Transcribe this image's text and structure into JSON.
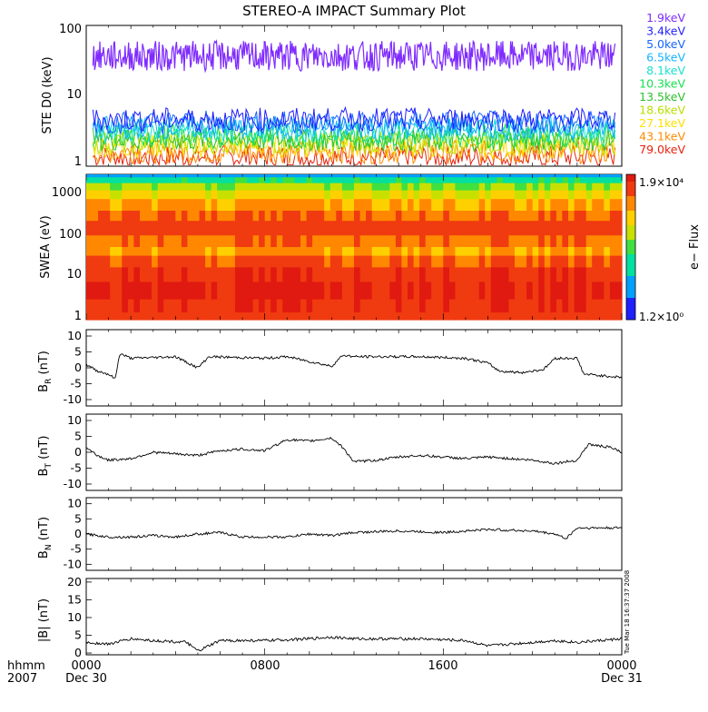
{
  "chart_data": {
    "type": "line",
    "title": "STEREO-A IMPACT Summary Plot",
    "x": {
      "ticks": [
        "0000",
        "0800",
        "1600",
        "0000"
      ],
      "dates": [
        "Dec 30",
        "Dec 31"
      ],
      "corner_label_1": "hhmm",
      "corner_label_2": "2007",
      "range_hours": [
        0,
        24
      ]
    },
    "stamp": "Tue Mar 18 16:37:37 2008",
    "panels": [
      {
        "id": "ste",
        "type": "line",
        "ylabel": "STE D0 (keV)",
        "yscale": "log",
        "ylim": [
          0.8,
          100
        ],
        "yticks": [
          "100",
          "10",
          "1"
        ],
        "legend_position": "right",
        "channels": [
          {
            "name": "1.9keV",
            "color": "#7f2bff",
            "level": 35
          },
          {
            "name": "3.4keV",
            "color": "#1f1fff",
            "level": 4
          },
          {
            "name": "5.0keV",
            "color": "#1566ff",
            "level": 3.6
          },
          {
            "name": "6.5keV",
            "color": "#14b4ff",
            "level": 3.0
          },
          {
            "name": "8.1keV",
            "color": "#18e0d0",
            "level": 2.7
          },
          {
            "name": "10.3keV",
            "color": "#16e050",
            "level": 2.3
          },
          {
            "name": "13.5keV",
            "color": "#2fc02f",
            "level": 2.0
          },
          {
            "name": "18.6keV",
            "color": "#b8e000",
            "level": 1.8
          },
          {
            "name": "27.1keV",
            "color": "#ffe100",
            "level": 1.6
          },
          {
            "name": "43.1keV",
            "color": "#ff8a00",
            "level": 1.3
          },
          {
            "name": "79.0keV",
            "color": "#e8230f",
            "level": 1.1
          }
        ]
      },
      {
        "id": "swea",
        "type": "heatmap",
        "ylabel": "SWEA (eV)",
        "yscale": "log",
        "ylim": [
          0.8,
          1900
        ],
        "yticks": [
          "1000",
          "100",
          "10",
          "1"
        ],
        "colorbar": {
          "label": "e− Flux",
          "max_label": "1.9×10⁴",
          "min_label": "1.2×10⁰"
        }
      },
      {
        "id": "br",
        "type": "line",
        "ylabel": "B",
        "ylabel_sub": "R",
        "ylabel_unit": " (nT)",
        "ylim": [
          -12,
          12
        ],
        "yticks": [
          10,
          5,
          0,
          -5,
          -10
        ],
        "segments": [
          [
            0,
            1
          ],
          [
            0.5,
            -1
          ],
          [
            1,
            -2
          ],
          [
            1.3,
            -3.5
          ],
          [
            1.5,
            4.5
          ],
          [
            2,
            3
          ],
          [
            4,
            3.5
          ],
          [
            5,
            0
          ],
          [
            5.5,
            3.5
          ],
          [
            8,
            3
          ],
          [
            9,
            3.5
          ],
          [
            10,
            2
          ],
          [
            11,
            0.5
          ],
          [
            11.5,
            4
          ],
          [
            12,
            3.5
          ],
          [
            15,
            3.5
          ],
          [
            17,
            3
          ],
          [
            18,
            1.5
          ],
          [
            18.5,
            -1
          ],
          [
            19.5,
            -1.5
          ],
          [
            20.5,
            -0.5
          ],
          [
            21,
            3
          ],
          [
            22,
            3
          ],
          [
            22.3,
            -2
          ],
          [
            24,
            -3
          ]
        ]
      },
      {
        "id": "bt",
        "type": "line",
        "ylabel": "B",
        "ylabel_sub": "T",
        "ylabel_unit": " (nT)",
        "ylim": [
          -12,
          12
        ],
        "yticks": [
          10,
          5,
          0,
          -5,
          -10
        ],
        "segments": [
          [
            0,
            1.5
          ],
          [
            0.5,
            -1
          ],
          [
            1,
            -2.5
          ],
          [
            2,
            -2
          ],
          [
            3,
            0
          ],
          [
            4,
            -0.5
          ],
          [
            5,
            -1
          ],
          [
            6,
            0.5
          ],
          [
            7,
            1
          ],
          [
            8,
            0.5
          ],
          [
            9,
            4
          ],
          [
            10,
            3.5
          ],
          [
            11,
            4.5
          ],
          [
            11.5,
            1.5
          ],
          [
            12,
            -3
          ],
          [
            13,
            -2.5
          ],
          [
            14,
            -1.5
          ],
          [
            15,
            -1
          ],
          [
            17,
            -2
          ],
          [
            18,
            -1.5
          ],
          [
            20,
            -2.5
          ],
          [
            21,
            -3.5
          ],
          [
            22,
            -2.5
          ],
          [
            22.5,
            2.5
          ],
          [
            23.5,
            1.5
          ],
          [
            24,
            0
          ]
        ]
      },
      {
        "id": "bn",
        "type": "line",
        "ylabel": "B",
        "ylabel_sub": "N",
        "ylabel_unit": " (nT)",
        "ylim": [
          -12,
          12
        ],
        "yticks": [
          10,
          5,
          0,
          -5,
          -10
        ],
        "segments": [
          [
            0,
            0
          ],
          [
            1,
            -1
          ],
          [
            2,
            -1
          ],
          [
            3,
            -0.5
          ],
          [
            4,
            -1
          ],
          [
            5,
            0
          ],
          [
            6,
            0.5
          ],
          [
            7,
            -1
          ],
          [
            9,
            -1
          ],
          [
            10,
            0
          ],
          [
            11,
            -0.5
          ],
          [
            12,
            0.5
          ],
          [
            14,
            1
          ],
          [
            16,
            0.5
          ],
          [
            18,
            1.5
          ],
          [
            20,
            1
          ],
          [
            21,
            0
          ],
          [
            21.5,
            -1.5
          ],
          [
            22,
            2
          ],
          [
            24,
            2
          ]
        ]
      },
      {
        "id": "b",
        "type": "line",
        "ylabel": "|B| (nT)",
        "ylim": [
          -0.5,
          21
        ],
        "yticks": [
          20,
          15,
          10,
          5,
          0
        ],
        "segments": [
          [
            0,
            3
          ],
          [
            1,
            2.5
          ],
          [
            2,
            4
          ],
          [
            3,
            3.5
          ],
          [
            4.5,
            3
          ],
          [
            5,
            0.5
          ],
          [
            6,
            3.5
          ],
          [
            8,
            3.5
          ],
          [
            10,
            4
          ],
          [
            11,
            4.5
          ],
          [
            12,
            4
          ],
          [
            15,
            4
          ],
          [
            17,
            3.5
          ],
          [
            18,
            2
          ],
          [
            19,
            2.5
          ],
          [
            21,
            3.5
          ],
          [
            22,
            3
          ],
          [
            24,
            4
          ]
        ]
      }
    ]
  }
}
